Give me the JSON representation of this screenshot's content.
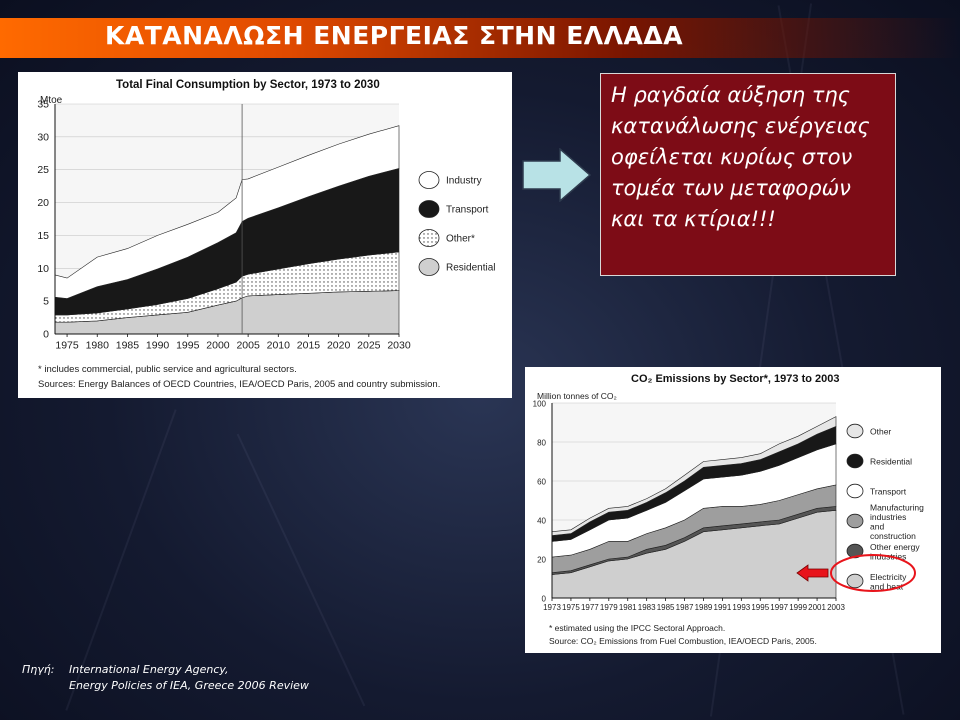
{
  "slide": {
    "title": "ΚΑΤΑΝΑΛΩΣΗ ΕΝΕΡΓΕΙΑΣ ΣΤΗΝ ΕΛΛΑΔΑ",
    "callout": "Η ραγδαία αύξηση της κατανάλωσης ενέργειας οφείλεται κυρίως στον τομέα των μεταφορών και τα κτίρια!!!",
    "source_label": "Πηγή:",
    "source_line1": "International Energy Agency,",
    "source_line2": "Energy Policies of IEA, Greece 2006 Review",
    "arrow_color": "#b8e2e6",
    "callout_color": "#7d0c16",
    "highlight_color": "#e8141b"
  },
  "chart_data": [
    {
      "type": "area",
      "stacked": true,
      "title": "Total Final Consumption by Sector, 1973 to 2030",
      "ylabel": "Mtoe",
      "ylim": [
        0,
        35
      ],
      "yticks": [
        0,
        5,
        10,
        15,
        20,
        25,
        30,
        35
      ],
      "xticks": [
        1975,
        1980,
        1985,
        1990,
        1995,
        2000,
        2005,
        2010,
        2015,
        2020,
        2025,
        2030
      ],
      "projection_start": 2004,
      "x": [
        1973,
        1975,
        1980,
        1985,
        1990,
        1995,
        2000,
        2003,
        2004,
        2005,
        2010,
        2015,
        2020,
        2025,
        2030
      ],
      "series": [
        {
          "name": "Residential",
          "fill": "#cfcfcf",
          "values": [
            1.8,
            1.8,
            2.0,
            2.5,
            2.9,
            3.3,
            4.4,
            5.0,
            5.5,
            5.8,
            6.0,
            6.2,
            6.4,
            6.5,
            6.6
          ]
        },
        {
          "name": "Other*",
          "fill": "dots",
          "values": [
            1.1,
            1.1,
            1.2,
            1.3,
            1.6,
            2.1,
            2.5,
            2.9,
            3.3,
            3.3,
            3.9,
            4.5,
            5.0,
            5.5,
            5.9
          ]
        },
        {
          "name": "Transport",
          "fill": "#181818",
          "values": [
            2.7,
            2.5,
            4.0,
            4.5,
            5.4,
            6.3,
            7.0,
            7.5,
            8.3,
            8.5,
            9.3,
            10.2,
            11.1,
            12.0,
            12.7
          ]
        },
        {
          "name": "Industry",
          "fill": "#ffffff",
          "values": [
            3.4,
            3.1,
            4.5,
            4.7,
            5.1,
            5.0,
            4.6,
            5.3,
            6.4,
            6.0,
            6.2,
            6.3,
            6.4,
            6.4,
            6.5
          ]
        }
      ],
      "legend": [
        "Industry",
        "Transport",
        "Other*",
        "Residential"
      ],
      "footnote": "* includes commercial, public service and agricultural sectors.",
      "source": "Sources: Energy Balances of OECD Countries, IEA/OECD Paris, 2005 and country submission."
    },
    {
      "type": "area",
      "stacked": true,
      "title": "CO₂ Emissions by Sector*, 1973 to 2003",
      "ylabel": "Million tonnes of CO₂",
      "ylim": [
        0,
        100
      ],
      "yticks": [
        0,
        20,
        40,
        60,
        80,
        100
      ],
      "xticks": [
        1973,
        1975,
        1977,
        1979,
        1981,
        1983,
        1985,
        1987,
        1989,
        1991,
        1993,
        1995,
        1997,
        1999,
        2001,
        2003
      ],
      "x": [
        1973,
        1975,
        1977,
        1979,
        1981,
        1983,
        1985,
        1987,
        1989,
        1991,
        1993,
        1995,
        1997,
        1999,
        2001,
        2003
      ],
      "series": [
        {
          "name": "Electricity and heat",
          "fill": "#cfcfcf",
          "values": [
            12,
            13,
            16,
            19,
            20,
            23,
            25,
            29,
            34,
            35,
            36,
            37,
            38,
            41,
            44,
            45
          ]
        },
        {
          "name": "Other energy industries",
          "fill": "#555555",
          "values": [
            1,
            1,
            1,
            1,
            1,
            2,
            2,
            2,
            2,
            2,
            2,
            2,
            2,
            2,
            2,
            2
          ]
        },
        {
          "name": "Manufacturing industries and construction",
          "fill": "#9e9e9e",
          "values": [
            8,
            8,
            8,
            9,
            8,
            8,
            9,
            9,
            10,
            10,
            9,
            9,
            10,
            10,
            10,
            11
          ]
        },
        {
          "name": "Transport",
          "fill": "#ffffff",
          "values": [
            8,
            8,
            10,
            11,
            12,
            12,
            13,
            15,
            15,
            15,
            16,
            17,
            18,
            19,
            20,
            21
          ]
        },
        {
          "name": "Residential",
          "fill": "#181818",
          "values": [
            3,
            3,
            4,
            4,
            4,
            4,
            5,
            5,
            6,
            6,
            6,
            6,
            7,
            7,
            8,
            9
          ]
        },
        {
          "name": "Other",
          "fill": "#e6e6e6",
          "values": [
            2,
            2,
            2,
            2,
            2,
            2,
            2,
            3,
            3,
            3,
            3,
            3,
            4,
            4,
            4,
            5
          ]
        }
      ],
      "legend": [
        "Other",
        "Residential",
        "Transport",
        "Manufacturing industries and construction",
        "Other energy industries",
        "Electricity and heat"
      ],
      "footnote": "* estimated using the IPCC Sectoral Approach.",
      "source": "Source: CO₂ Emissions from Fuel Combustion, IEA/OECD Paris, 2005."
    }
  ]
}
